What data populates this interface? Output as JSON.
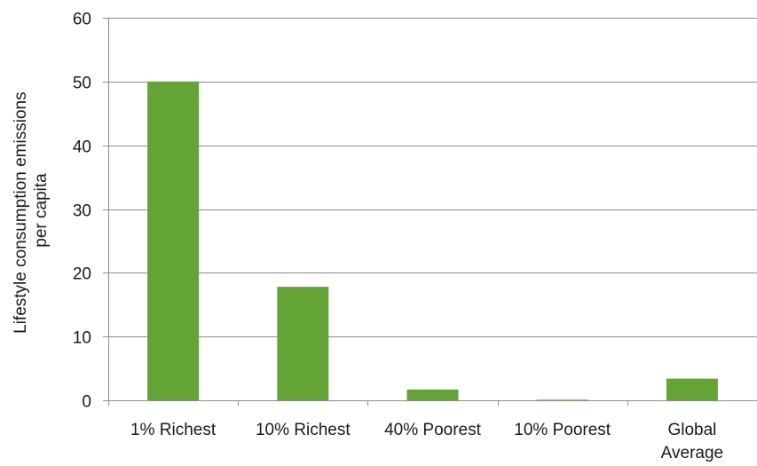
{
  "chart_data": {
    "type": "bar",
    "categories": [
      "1% Richest",
      "10% Richest",
      "40% Poorest",
      "10% Poorest",
      "Global Average"
    ],
    "category_label_lines": [
      [
        "1% Richest"
      ],
      [
        "10% Richest"
      ],
      [
        "40% Poorest"
      ],
      [
        "10% Poorest"
      ],
      [
        "Global",
        "Average"
      ]
    ],
    "values": [
      50,
      17.8,
      1.7,
      0.1,
      3.4
    ],
    "title": "",
    "xlabel": "",
    "ylabel_lines": [
      "Lifestyle consumption emissions",
      "per capita"
    ],
    "ylim": [
      0,
      60
    ],
    "yticks": [
      0,
      10,
      20,
      30,
      40,
      50,
      60
    ],
    "grid": true,
    "legend": "none",
    "colors": {
      "bar": "#64a436",
      "grid": "#8c8c8c",
      "axis": "#8c8c8c",
      "text": "#1a1a1a"
    }
  }
}
